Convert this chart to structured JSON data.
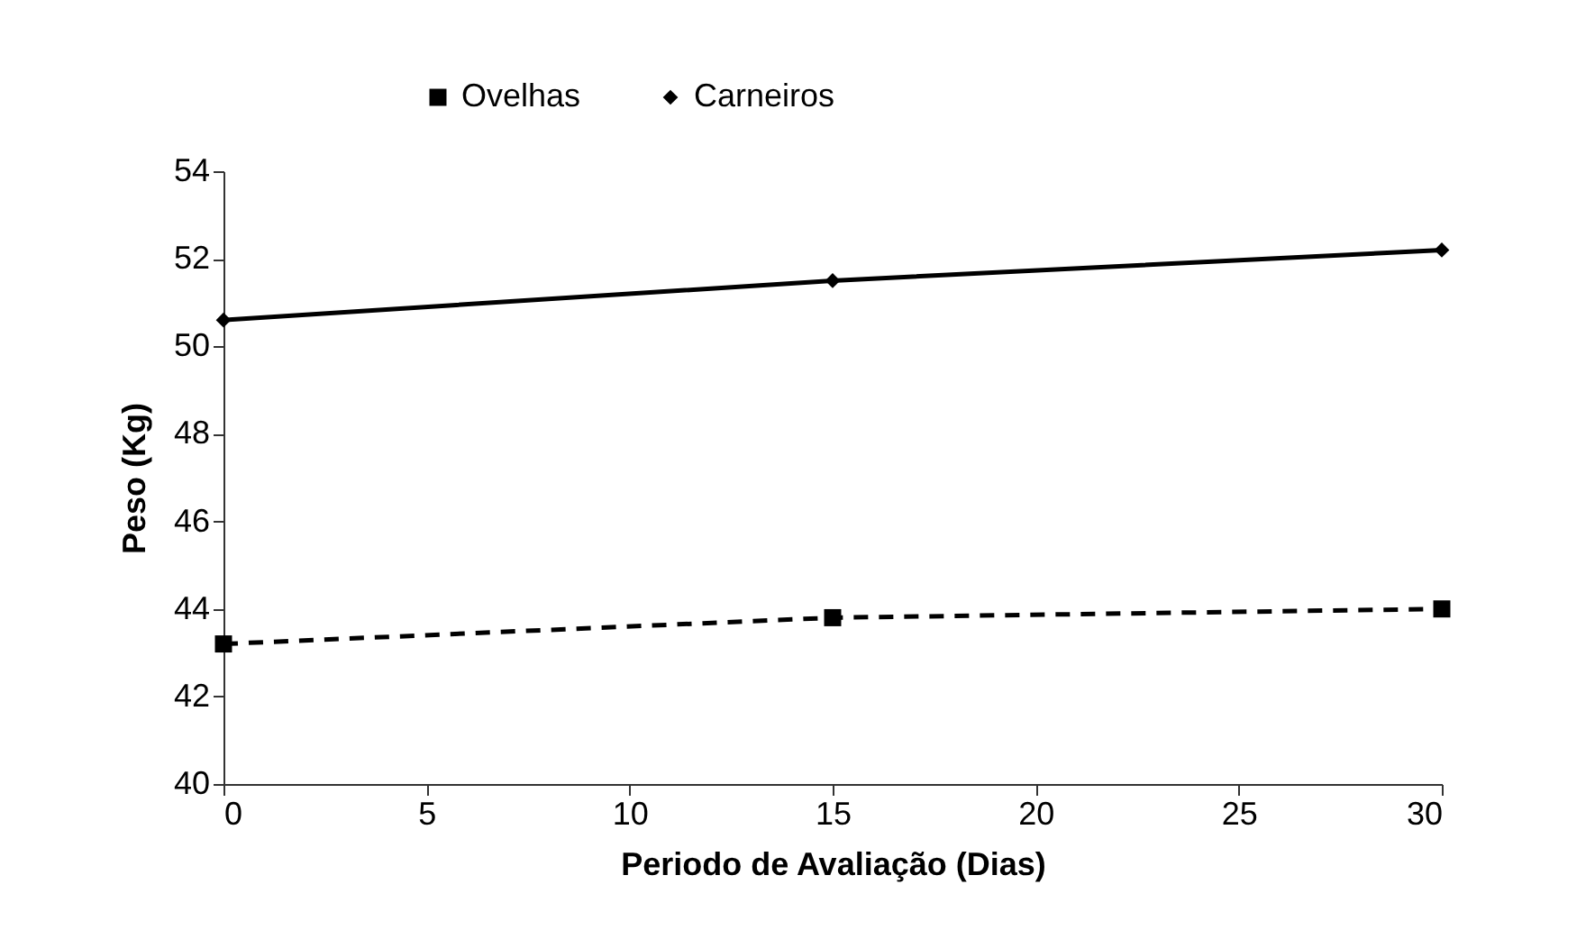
{
  "chart_data": {
    "type": "line",
    "xlabel": "Periodo de Avaliação (Dias)",
    "ylabel": "Peso (Kg)",
    "x": [
      0,
      15,
      30
    ],
    "series": [
      {
        "name": "Ovelhas",
        "color": "#000000",
        "values": [
          43.2,
          43.8,
          44.0
        ],
        "marker": "square",
        "line_style": "dashed"
      },
      {
        "name": "Carneiros",
        "color": "#000000",
        "values": [
          50.6,
          51.5,
          52.2
        ],
        "marker": "diamond",
        "line_style": "solid"
      }
    ],
    "xlim": [
      0,
      30
    ],
    "xticks": [
      0,
      5,
      10,
      15,
      20,
      25,
      30
    ],
    "ylim": [
      40,
      54
    ],
    "yticks": [
      40,
      42,
      44,
      46,
      48,
      50,
      52,
      54
    ],
    "grid": false,
    "legend": "top"
  }
}
